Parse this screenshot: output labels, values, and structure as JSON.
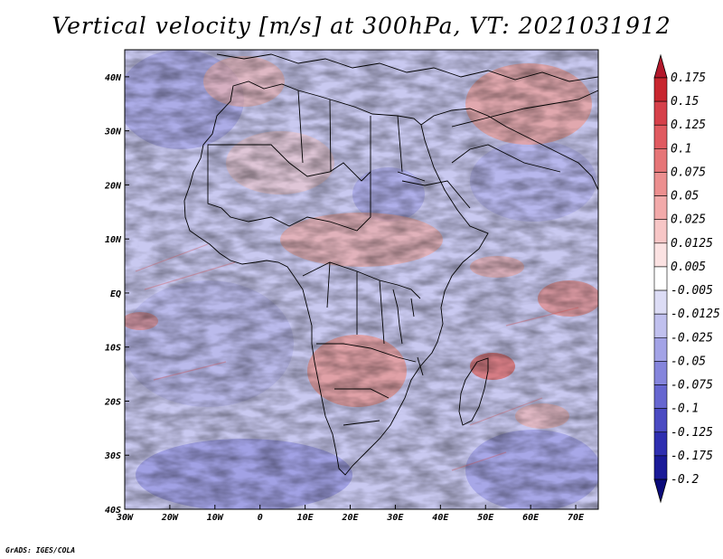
{
  "title": "Vertical velocity [m/s] at 300hPa, VT: 2021031912",
  "credit": "GrADS: IGES/COLA",
  "map": {
    "lon_range": [
      -30,
      75
    ],
    "lat_range": [
      -40,
      45
    ],
    "x_ticks": [
      "30W",
      "20W",
      "10W",
      "0",
      "10E",
      "20E",
      "30E",
      "40E",
      "50E",
      "60E",
      "70E"
    ],
    "y_ticks": [
      "40S",
      "30S",
      "20S",
      "10S",
      "EQ",
      "10N",
      "20N",
      "30N",
      "40N"
    ]
  },
  "colorbar": {
    "labels": [
      "0.175",
      "0.15",
      "0.125",
      "0.1",
      "0.075",
      "0.05",
      "0.025",
      "0.0125",
      "0.005",
      "-0.005",
      "-0.0125",
      "-0.025",
      "-0.05",
      "-0.075",
      "-0.1",
      "-0.125",
      "-0.175",
      "-0.2"
    ],
    "colors": [
      "#b2182b",
      "#c8262f",
      "#d6404a",
      "#e05a60",
      "#e67577",
      "#ec8f8f",
      "#f2aaaa",
      "#f7c6c6",
      "#fbe2e2",
      "#ffffff",
      "#dcdcf5",
      "#c0c0ee",
      "#a3a3e6",
      "#8585dc",
      "#6666d0",
      "#4a4ac2",
      "#2e2eb0",
      "#1a1a98",
      "#0b0b7a"
    ]
  }
}
